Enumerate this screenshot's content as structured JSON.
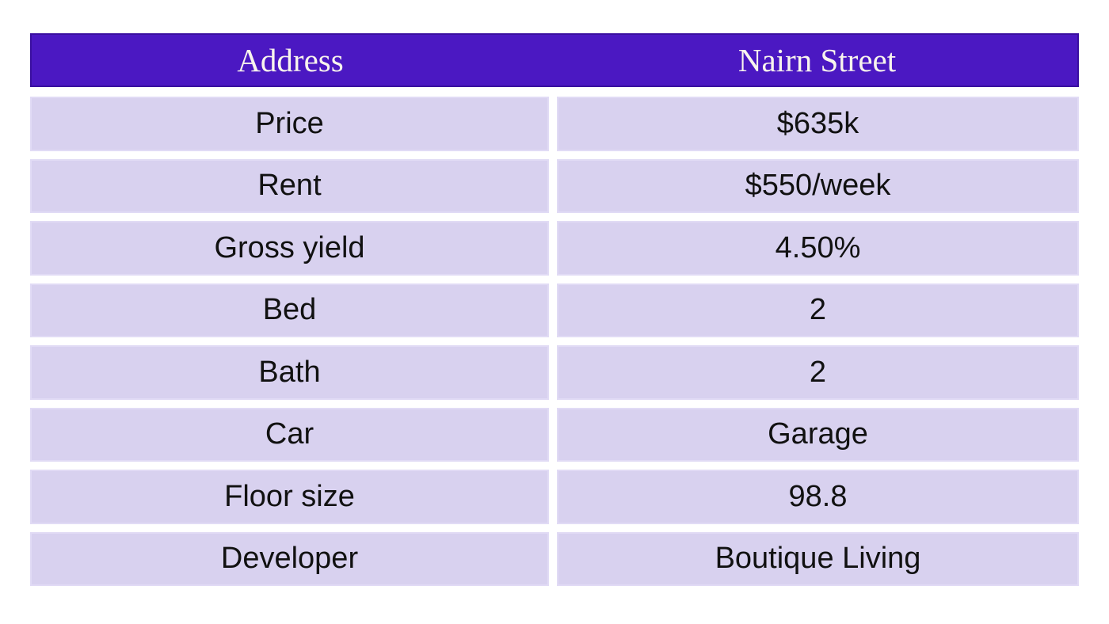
{
  "table": {
    "header": {
      "label_column": "Address",
      "value_column": "Nairn Street"
    },
    "rows": [
      {
        "label": "Price",
        "value": "$635k"
      },
      {
        "label": "Rent",
        "value": "$550/week"
      },
      {
        "label": "Gross yield",
        "value": "4.50%"
      },
      {
        "label": "Bed",
        "value": "2"
      },
      {
        "label": "Bath",
        "value": "2"
      },
      {
        "label": "Car",
        "value": "Garage"
      },
      {
        "label": "Floor size",
        "value": "98.8"
      },
      {
        "label": "Developer",
        "value": "Boutique Living"
      }
    ]
  },
  "colors": {
    "page_bg": "#ffffff",
    "header_bg": "#4b18c2",
    "header_border": "#3a0fa0",
    "header_text": "#f8f4ed",
    "row_bg": "#d8d1ef",
    "row_border": "#e1dbf5",
    "row_text": "#111111"
  }
}
